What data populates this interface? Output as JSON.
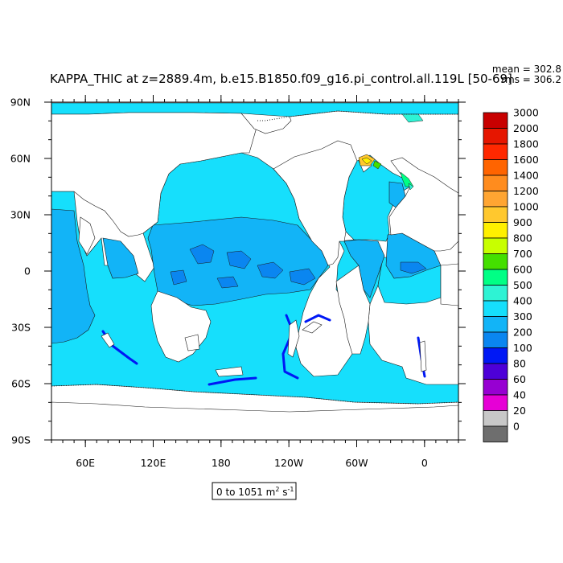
{
  "title": "KAPPA_THIC at z=2889.4m, b.e15.B1850.f09_g16.pi_control.all.119L [50-69]",
  "stats": {
    "mean": "mean = 302.8",
    "rms": "rms = 306.2"
  },
  "range_label": {
    "text": "0 to 1051 m",
    "unit_sup": "2",
    "unit_mid": " s",
    "unit_sup2": "-1"
  },
  "colors": {
    "ocean_bg": "#16dffc",
    "land": "#ffffff",
    "band_300": "#12b4f7",
    "band_200": "#0a86f0",
    "band_100": "#0018f5",
    "band_500": "#2ef3d4",
    "band_600": "#00ff85",
    "band_700": "#44df00",
    "band_900": "#fff000",
    "band_1000": "#ffc82e"
  },
  "chart_data": {
    "type": "heatmap",
    "x_ticks": [
      "60E",
      "120E",
      "180",
      "120W",
      "60W",
      "0"
    ],
    "x_tick_lon": [
      60,
      120,
      180,
      240,
      300,
      360
    ],
    "x_range_lon": [
      30,
      390
    ],
    "y_ticks": [
      "90N",
      "60N",
      "30N",
      "0",
      "30S",
      "60S",
      "90S"
    ],
    "y_tick_lat": [
      90,
      60,
      30,
      0,
      -30,
      -60,
      -90
    ],
    "y_range_lat": [
      -90,
      90
    ],
    "colorbar": {
      "labels": [
        "3000",
        "2000",
        "1800",
        "1600",
        "1400",
        "1200",
        "1000",
        "900",
        "800",
        "700",
        "600",
        "500",
        "400",
        "300",
        "200",
        "100",
        "80",
        "60",
        "40",
        "20",
        "0"
      ],
      "colors": [
        "#c80000",
        "#e61600",
        "#ff2800",
        "#ff6400",
        "#ff8c1e",
        "#ffa532",
        "#ffc82e",
        "#fff000",
        "#c8ff00",
        "#44df00",
        "#00ff85",
        "#2ef3d4",
        "#16dffc",
        "#12b4f7",
        "#0a86f0",
        "#0018f5",
        "#4d00d8",
        "#9700d2",
        "#e600d6",
        "#c8c8c8",
        "#6e6e6e"
      ]
    }
  }
}
